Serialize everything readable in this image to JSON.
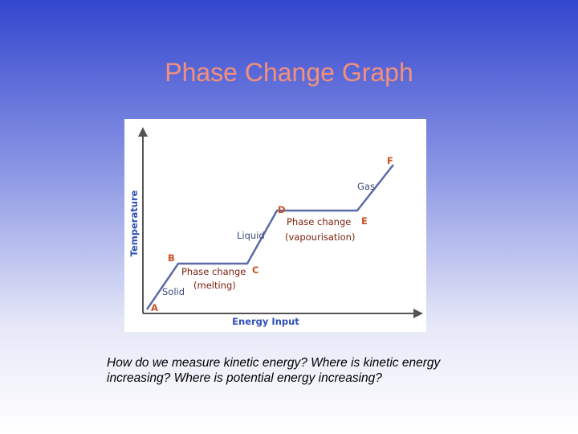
{
  "title": "Phase Change Graph",
  "diagram": {
    "y_axis_label": "Temperature",
    "x_axis_label": "Energy Input",
    "points": [
      "A",
      "B",
      "C",
      "D",
      "E",
      "F"
    ],
    "regions": [
      "Solid",
      "Liquid",
      "Gas"
    ],
    "phase_changes": [
      [
        "Phase change",
        "(melting)"
      ],
      [
        "Phase change",
        "(vapourisation)"
      ]
    ]
  },
  "caption": "How do we measure kinetic energy? Where is kinetic energy increasing? Where is potential energy increasing?"
}
